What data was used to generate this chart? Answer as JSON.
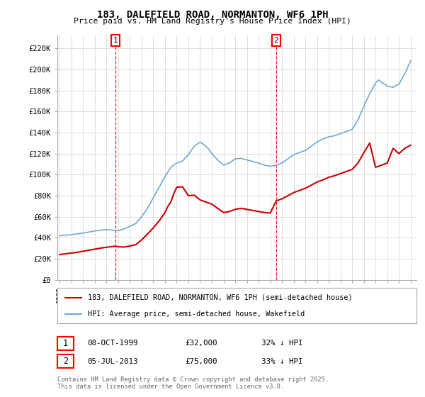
{
  "title": "183, DALEFIELD ROAD, NORMANTON, WF6 1PH",
  "subtitle": "Price paid vs. HM Land Registry's House Price Index (HPI)",
  "hpi_color": "#6fa8d6",
  "price_color": "#cc0000",
  "legend_line1": "183, DALEFIELD ROAD, NORMANTON, WF6 1PH (semi-detached house)",
  "legend_line2": "HPI: Average price, semi-detached house, Wakefield",
  "table_row1": [
    "1",
    "08-OCT-1999",
    "£32,000",
    "32% ↓ HPI"
  ],
  "table_row2": [
    "2",
    "05-JUL-2013",
    "£75,000",
    "33% ↓ HPI"
  ],
  "footnote": "Contains HM Land Registry data © Crown copyright and database right 2025.\nThis data is licensed under the Open Government Licence v3.0.",
  "bg_color": "#ffffff",
  "grid_color": "#dddddd",
  "yticks": [
    0,
    20000,
    40000,
    60000,
    80000,
    100000,
    120000,
    140000,
    160000,
    180000,
    200000,
    220000
  ],
  "ytick_labels": [
    "£0",
    "£20K",
    "£40K",
    "£60K",
    "£80K",
    "£100K",
    "£120K",
    "£140K",
    "£160K",
    "£180K",
    "£200K",
    "£220K"
  ],
  "ylim": [
    0,
    232000
  ],
  "xlim": [
    1994.8,
    2025.5
  ],
  "marker1_x": 1999.77,
  "marker2_x": 2013.5
}
